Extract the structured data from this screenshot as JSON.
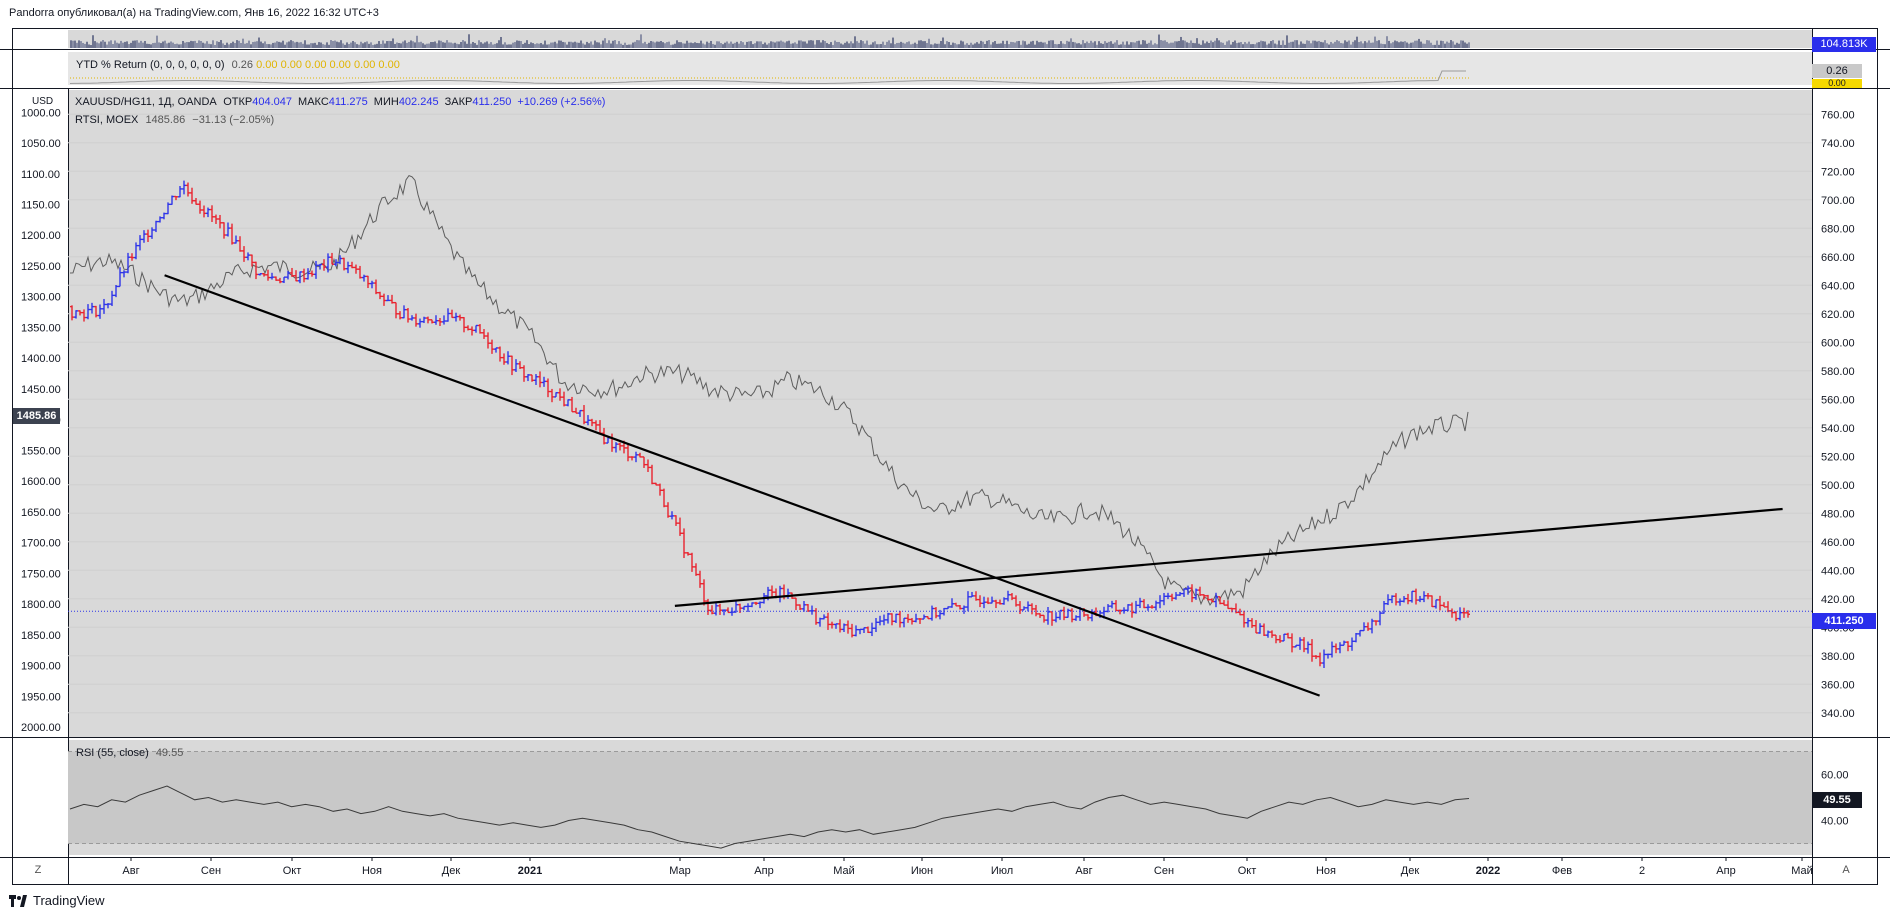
{
  "header": {
    "text": "Pandorra опубликовал(а) на TradingView.com, Янв 16, 2022 16:32 UTC+3"
  },
  "volume_panel": {
    "last_value": "104.813K"
  },
  "ytd_panel": {
    "label": "YTD % Return (0, 0, 0, 0, 0, 0)",
    "value_first": "0.26",
    "values_rest": [
      "0.00",
      "0.00",
      "0.00",
      "0.00",
      "0.00",
      "0.00"
    ],
    "badge_value": "0.26",
    "badge_zero": "0.00"
  },
  "main_panel": {
    "currency": "USD",
    "legend_symbol": "XAUUSD/HG11, 1Д, OANDA",
    "open_label": "ОТКР",
    "open_value": "404.047",
    "high_label": "МАКС",
    "high_value": "411.275",
    "low_label": "МИН",
    "low_value": "402.245",
    "close_label": "ЗАКР",
    "close_value": "411.250",
    "change": "+10.269 (+2.56%)",
    "overlay_legend": "RTSI, MOEX",
    "overlay_value": "1485.86",
    "overlay_change": "−31.13 (−2.05%)",
    "left_badge": "1485.86",
    "right_badge": "411.250"
  },
  "rsi_panel": {
    "label": "RSI (55, close)",
    "value": "49.55",
    "badge": "49.55",
    "ticks": [
      {
        "value": 60,
        "label": "60.00"
      },
      {
        "value": 40,
        "label": "40.00"
      }
    ]
  },
  "time_axis": {
    "left_button": "Z",
    "right_button": "A",
    "labels": [
      {
        "text": "Авг",
        "bold": false
      },
      {
        "text": "Сен",
        "bold": false
      },
      {
        "text": "Окт",
        "bold": false
      },
      {
        "text": "Ноя",
        "bold": false
      },
      {
        "text": "Дек",
        "bold": false
      },
      {
        "text": "2021",
        "bold": true
      },
      {
        "text": "Мар",
        "bold": false
      },
      {
        "text": "Апр",
        "bold": false
      },
      {
        "text": "Май",
        "bold": false
      },
      {
        "text": "Июн",
        "bold": false
      },
      {
        "text": "Июл",
        "bold": false
      },
      {
        "text": "Авг",
        "bold": false
      },
      {
        "text": "Сен",
        "bold": false
      },
      {
        "text": "Окт",
        "bold": false
      },
      {
        "text": "Ноя",
        "bold": false
      },
      {
        "text": "Дек",
        "bold": false
      },
      {
        "text": "2022",
        "bold": true
      },
      {
        "text": "Фев",
        "bold": false
      },
      {
        "text": "2",
        "bold": false
      },
      {
        "text": "Апр",
        "bold": false
      },
      {
        "text": "Май",
        "bold": false
      }
    ]
  },
  "footer": {
    "brand": "TradingView"
  },
  "colors": {
    "up": "#2f35e8",
    "down": "#e8242f",
    "overlay": "#5d5d5d",
    "plot_bg": "#d9d9d9",
    "rsi_band": "#c8c8c8",
    "badge_dark": "#3c4250",
    "badge_blue": "#2a2eec"
  },
  "chart_data": {
    "type": "line",
    "title": "XAUUSD/HG11, 1Д, OANDA",
    "right_axis": {
      "range": [
        330,
        770
      ],
      "ticks": [
        340,
        360,
        380,
        400,
        420,
        440,
        460,
        480,
        500,
        520,
        540,
        560,
        580,
        600,
        620,
        640,
        660,
        680,
        700,
        720,
        740,
        760
      ]
    },
    "left_axis_inverted": {
      "range": [
        2000,
        980
      ],
      "ticks": [
        2000,
        1950,
        1900,
        1850,
        1800,
        1750,
        1700,
        1650,
        1600,
        1550,
        1500,
        1450,
        1400,
        1350,
        1300,
        1250,
        1200,
        1150,
        1100,
        1050,
        1000
      ]
    },
    "series": [
      {
        "name": "XAUUSD/HG11",
        "style": "bars",
        "x": [
          "2020-07",
          "2020-08",
          "2020-09",
          "2020-10",
          "2020-11",
          "2020-12",
          "2021-01",
          "2021-02",
          "2021-03",
          "2021-04",
          "2021-05",
          "2021-06",
          "2021-07",
          "2021-08",
          "2021-09",
          "2021-10",
          "2021-11",
          "2021-12",
          "2022-01"
        ],
        "values": [
          625,
          715,
          645,
          655,
          620,
          605,
          555,
          520,
          415,
          420,
          395,
          415,
          418,
          405,
          425,
          410,
          375,
          420,
          411.25
        ]
      },
      {
        "name": "RTSI, MOEX",
        "style": "line",
        "x": [
          "2020-07",
          "2020-08",
          "2020-09",
          "2020-10",
          "2020-11",
          "2020-12",
          "2021-01",
          "2021-02",
          "2021-03",
          "2021-04",
          "2021-05",
          "2021-06",
          "2021-07",
          "2021-08",
          "2021-09",
          "2021-10",
          "2021-11",
          "2021-12",
          "2022-01"
        ],
        "values": [
          1260,
          1290,
          1270,
          1230,
          1130,
          1280,
          1450,
          1420,
          1460,
          1430,
          1520,
          1650,
          1640,
          1650,
          1760,
          1790,
          1650,
          1560,
          1485.86
        ]
      }
    ],
    "trendlines": [
      {
        "from": [
          "2020-08-08",
          647
        ],
        "to": [
          "2021-11-15",
          352
        ]
      },
      {
        "from": [
          "2021-03-01",
          415
        ],
        "to": [
          "2022-05-20",
          483
        ]
      }
    ],
    "rsi": {
      "name": "RSI (55, close)",
      "range": [
        25,
        75
      ],
      "band": [
        30,
        70
      ],
      "values": [
        45,
        47,
        46,
        49,
        48,
        51,
        53,
        55,
        52,
        49,
        50,
        48,
        49,
        48,
        47,
        48,
        46,
        47,
        46,
        44,
        45,
        43,
        44,
        46,
        44,
        43,
        42,
        43,
        41,
        40,
        39,
        38,
        39,
        38,
        37,
        38,
        40,
        41,
        40,
        39,
        38,
        36,
        35,
        33,
        31,
        30,
        29,
        28,
        30,
        31,
        32,
        33,
        34,
        33,
        35,
        36,
        35,
        36,
        34,
        35,
        36,
        37,
        39,
        41,
        42,
        43,
        44,
        45,
        44,
        46,
        47,
        48,
        46,
        45,
        48,
        50,
        51,
        49,
        47,
        48,
        47,
        46,
        45,
        43,
        42,
        41,
        44,
        46,
        48,
        47,
        49,
        50,
        48,
        46,
        47,
        49,
        48,
        47,
        48,
        47,
        49,
        49.55
      ]
    }
  }
}
